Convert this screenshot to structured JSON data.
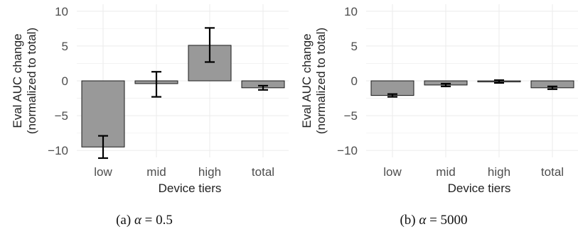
{
  "chart_data": [
    {
      "type": "bar",
      "categories": [
        "low",
        "mid",
        "high",
        "total"
      ],
      "values": [
        -9.5,
        -0.4,
        5.1,
        -1.0
      ],
      "error_low": [
        -11.1,
        -2.3,
        2.7,
        -1.3
      ],
      "error_high": [
        -7.9,
        1.3,
        7.6,
        -0.7
      ],
      "xlabel": "Device tiers",
      "ylabel": [
        "Eval AUC change",
        "(normalized to total)"
      ],
      "ylim": [
        -11,
        11
      ],
      "yticks": [
        -10,
        -5,
        0,
        5,
        10
      ],
      "grid": true,
      "bar_color": "#999999",
      "caption": {
        "prefix": "(a) ",
        "symbol": "α",
        "rest": " = 0.5"
      }
    },
    {
      "type": "bar",
      "categories": [
        "low",
        "mid",
        "high",
        "total"
      ],
      "values": [
        -2.1,
        -0.6,
        -0.1,
        -1.0
      ],
      "error_low": [
        -2.3,
        -0.8,
        -0.3,
        -1.2
      ],
      "error_high": [
        -1.9,
        -0.4,
        0.1,
        -0.8
      ],
      "xlabel": "Device tiers",
      "ylabel": [
        "Eval AUC change",
        "(normalized to total)"
      ],
      "ylim": [
        -11,
        11
      ],
      "yticks": [
        -10,
        -5,
        0,
        5,
        10
      ],
      "grid": true,
      "bar_color": "#999999",
      "caption": {
        "prefix": "(b) ",
        "symbol": "α",
        "rest": " = 5000"
      }
    }
  ]
}
